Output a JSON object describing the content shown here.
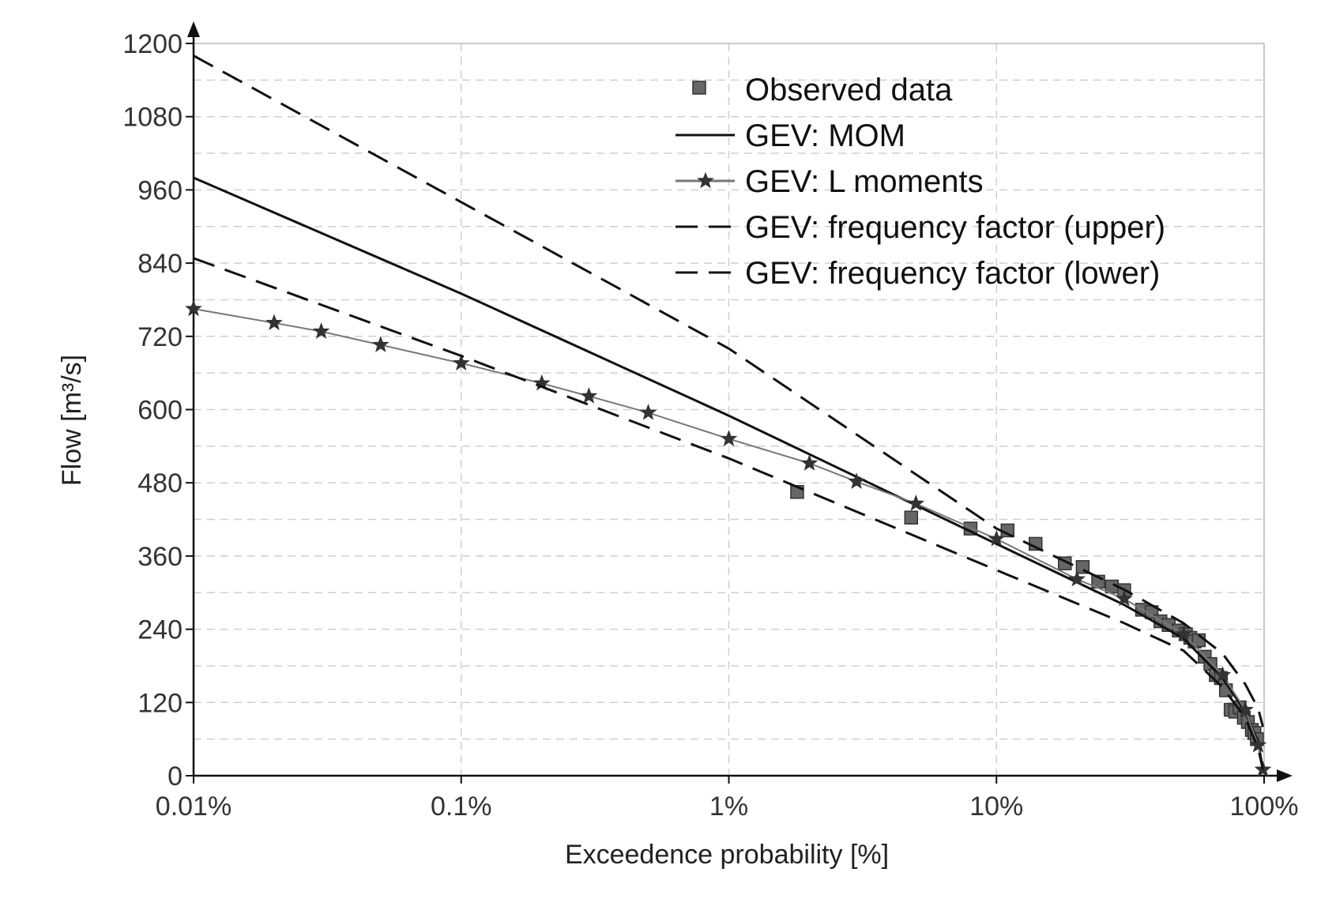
{
  "chart_data": {
    "type": "line",
    "xlabel": "Exceedence probability [%]",
    "ylabel": "Flow [m³/s]",
    "x_scale": "log",
    "xlim": [
      0.01,
      100
    ],
    "ylim": [
      0,
      1200
    ],
    "x_ticks": [
      0.01,
      0.1,
      1,
      10,
      100
    ],
    "x_tick_labels": [
      "0.01%",
      "0.1%",
      "1%",
      "10%",
      "100%"
    ],
    "y_ticks": [
      0,
      120,
      240,
      360,
      480,
      600,
      720,
      840,
      960,
      1080,
      1200
    ],
    "y_tick_labels": [
      "0",
      "120",
      "240",
      "360",
      "480",
      "600",
      "720",
      "840",
      "960",
      "1080",
      "1200"
    ],
    "grid": true,
    "legend_position": "top-right",
    "series": [
      {
        "name": "Observed data",
        "kind": "markers",
        "marker": "square",
        "color": "#666666",
        "points": [
          [
            1.8,
            465
          ],
          [
            4.8,
            423
          ],
          [
            8.0,
            405
          ],
          [
            11.0,
            402
          ],
          [
            14.0,
            380
          ],
          [
            18.0,
            348
          ],
          [
            21.0,
            342
          ],
          [
            24.0,
            318
          ],
          [
            27.0,
            310
          ],
          [
            30.0,
            304
          ],
          [
            35.0,
            272
          ],
          [
            38.0,
            268
          ],
          [
            41.0,
            253
          ],
          [
            44.0,
            247
          ],
          [
            48.0,
            238
          ],
          [
            51.0,
            232
          ],
          [
            53.0,
            226
          ],
          [
            55.0,
            220
          ],
          [
            57.0,
            222
          ],
          [
            60.0,
            195
          ],
          [
            63.0,
            183
          ],
          [
            66.0,
            165
          ],
          [
            69.0,
            160
          ],
          [
            72.0,
            140
          ],
          [
            75.0,
            108
          ],
          [
            78.0,
            105
          ],
          [
            81.0,
            112
          ],
          [
            84.0,
            95
          ],
          [
            87.0,
            88
          ],
          [
            90.0,
            75
          ],
          [
            92.0,
            70
          ],
          [
            94.0,
            60
          ]
        ]
      },
      {
        "name": "GEV: MOM",
        "kind": "line",
        "dash": "solid",
        "color": "#111111",
        "points": [
          [
            0.01,
            980
          ],
          [
            0.1,
            790
          ],
          [
            1,
            590
          ],
          [
            10,
            380
          ],
          [
            30,
            280
          ],
          [
            50,
            225
          ],
          [
            70,
            160
          ],
          [
            85,
            105
          ],
          [
            95,
            55
          ],
          [
            99,
            10
          ]
        ]
      },
      {
        "name": "GEV: L moments",
        "kind": "line-markers",
        "dash": "solid",
        "marker": "star",
        "color": "#777777",
        "points": [
          [
            0.01,
            765
          ],
          [
            0.02,
            742
          ],
          [
            0.03,
            728
          ],
          [
            0.05,
            706
          ],
          [
            0.1,
            676
          ],
          [
            0.2,
            643
          ],
          [
            0.3,
            622
          ],
          [
            0.5,
            595
          ],
          [
            1,
            552
          ],
          [
            2,
            512
          ],
          [
            3,
            482
          ],
          [
            5,
            446
          ],
          [
            10,
            388
          ],
          [
            20,
            322
          ],
          [
            30,
            290
          ],
          [
            50,
            232
          ],
          [
            70,
            165
          ],
          [
            85,
            108
          ],
          [
            95,
            50
          ],
          [
            99,
            10
          ]
        ]
      },
      {
        "name": "GEV: frequency factor (upper)",
        "kind": "line",
        "dash": "dashed",
        "color": "#111111",
        "points": [
          [
            0.01,
            1180
          ],
          [
            0.1,
            940
          ],
          [
            1,
            700
          ],
          [
            10,
            405
          ],
          [
            30,
            305
          ],
          [
            50,
            250
          ],
          [
            70,
            200
          ],
          [
            85,
            150
          ],
          [
            95,
            110
          ],
          [
            99,
            80
          ]
        ]
      },
      {
        "name": "GEV: frequency factor (lower)",
        "kind": "line",
        "dash": "dashed",
        "color": "#111111",
        "points": [
          [
            0.01,
            848
          ],
          [
            0.1,
            688
          ],
          [
            1,
            520
          ],
          [
            10,
            337
          ],
          [
            30,
            250
          ],
          [
            50,
            205
          ],
          [
            70,
            145
          ],
          [
            85,
            95
          ],
          [
            95,
            45
          ],
          [
            99,
            10
          ]
        ]
      }
    ]
  }
}
